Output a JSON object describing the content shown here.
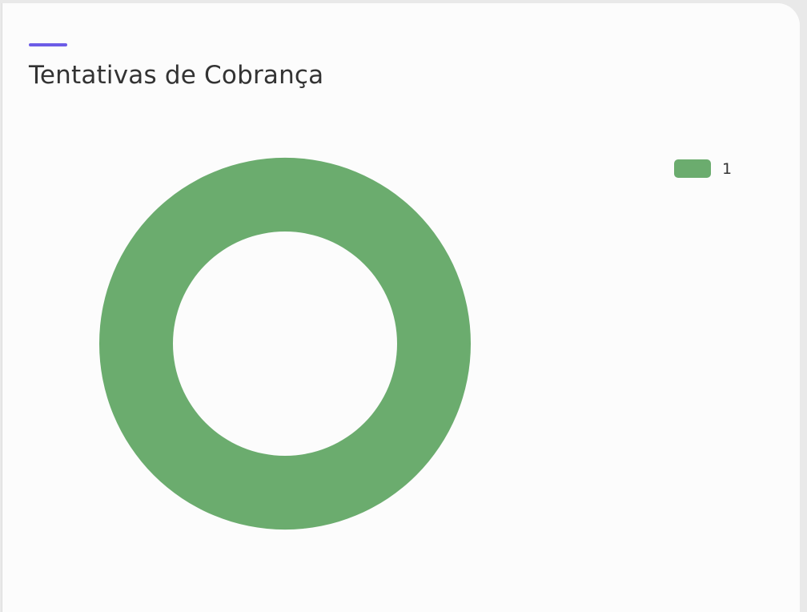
{
  "card": {
    "title": "Tentativas de Cobrança",
    "accent_color": "#6c5ce7"
  },
  "chart_data": {
    "type": "pie",
    "variant": "donut",
    "title": "Tentativas de Cobrança",
    "categories": [
      "1"
    ],
    "values": [
      1
    ],
    "colors": [
      "#6bac6e"
    ],
    "legend": {
      "placement": "top-right",
      "entries": [
        "1"
      ]
    }
  }
}
